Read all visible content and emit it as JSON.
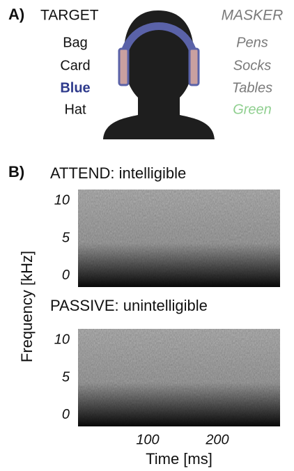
{
  "panel_a": {
    "label": "A)",
    "target": {
      "title": "TARGET",
      "words": [
        "Bag",
        "Card",
        "Blue",
        "Hat"
      ]
    },
    "masker": {
      "title": "MASKER",
      "words": [
        "Pens",
        "Socks",
        "Tables",
        "Green"
      ]
    }
  },
  "panel_b": {
    "label": "B)",
    "ylabel": "Frequency [kHz]",
    "xlabel": "Time [ms]"
  },
  "chart_data": [
    {
      "type": "spectrogram",
      "title": "ATTEND: intelligible",
      "ylim": [
        -1.5,
        11.5
      ],
      "yticks": [
        0,
        5,
        10
      ]
    },
    {
      "type": "spectrogram",
      "title": "PASSIVE: unintelligible",
      "ylim": [
        -1.5,
        11.5
      ],
      "yticks": [
        0,
        5,
        10
      ],
      "xlim": [
        0,
        290
      ],
      "xticks": [
        100,
        200
      ]
    }
  ]
}
